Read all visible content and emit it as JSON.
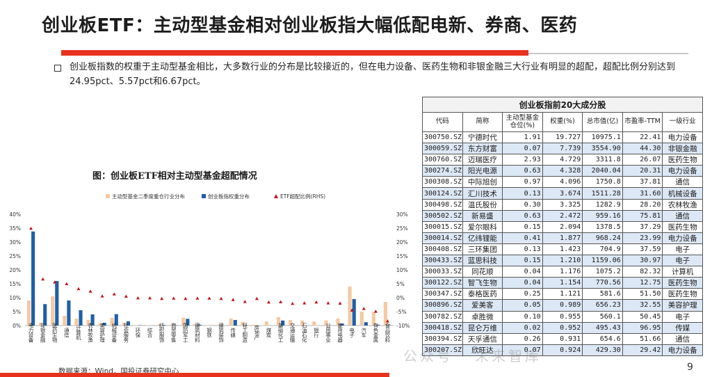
{
  "slide": {
    "title": "创业板ETF：主动型基金相对创业板指大幅低配电新、券商、医药",
    "bullet": "创业板指数的权重于主动型基金相比，大多数行业的分布是比较接近的，但在电力设备、医药生物和非银金融三大行业有明显的超配，超配比例分别达到24.95pct、5.57pct和6.67pct。",
    "source": "数据来源：Wind，国投证券研究中心",
    "watermark": "公众号 · 未来智库",
    "page_number": "9",
    "accent_color": "#e8321e"
  },
  "chart_data": {
    "type": "bar",
    "title": "图：创业板ETF相对主动型基金超配情况",
    "categories": [
      "电力设备",
      "非银金融",
      "医药生物",
      "通信",
      "计算机",
      "农林牧渔",
      "美容护理",
      "机械设备",
      "社会服务",
      "环保",
      "综合",
      "纺织服饰",
      "商贸零售",
      "国防军工",
      "建筑材料",
      "钢铁",
      "建筑装饰",
      "传媒",
      "轻工制造",
      "房地产",
      "煤炭",
      "基础化工",
      "交通运输",
      "石油石化",
      "银行",
      "公用事业",
      "家用电器",
      "电子",
      "汽车",
      "有色金属",
      "食品饮料"
    ],
    "series": [
      {
        "name": "主动型基金二季度重仓行业分布",
        "axis": "left",
        "color": "#f5c9a3",
        "values": [
          9.0,
          1.0,
          10.5,
          3.5,
          2.5,
          2.0,
          0.7,
          2.8,
          1.0,
          0.1,
          0.1,
          0.5,
          0.3,
          2.8,
          0.5,
          0.1,
          0.4,
          2.5,
          1.3,
          0.3,
          1.5,
          3.0,
          2.0,
          1.8,
          1.5,
          1.8,
          2.5,
          14.0,
          5.0,
          5.0,
          8.5
        ]
      },
      {
        "name": "创业板指权重分布",
        "axis": "left",
        "color": "#1f5fa8",
        "values": [
          33.8,
          7.7,
          16.0,
          9.0,
          5.5,
          4.0,
          1.0,
          4.1,
          1.5,
          0.1,
          0.0,
          0.2,
          0.1,
          2.4,
          0.3,
          0.0,
          0.0,
          2.0,
          0.0,
          0.0,
          0.0,
          1.8,
          0.0,
          0.0,
          0.0,
          0.0,
          0.7,
          9.5,
          1.2,
          0.3,
          0.1
        ]
      },
      {
        "name": "ETF超配比例(RHS)",
        "axis": "right",
        "type": "scatter",
        "color": "#c0171b",
        "values": [
          24.9,
          6.7,
          5.6,
          5.0,
          3.2,
          2.3,
          0.6,
          1.3,
          0.5,
          -0.1,
          -0.1,
          -0.3,
          -0.2,
          -0.3,
          -0.2,
          -0.2,
          -0.3,
          -0.7,
          -1.4,
          -0.3,
          -1.6,
          -1.5,
          -2.1,
          -1.9,
          -1.6,
          -1.9,
          -2.0,
          -4.5,
          -3.9,
          -4.9,
          -8.4
        ]
      }
    ],
    "ylim_left": [
      0,
      40
    ],
    "ylim_right": [
      -10,
      30
    ],
    "yticks_left": [
      "0%",
      "5%",
      "10%",
      "15%",
      "20%",
      "25%",
      "30%",
      "35%",
      "40%"
    ],
    "yticks_right": [
      "-10%",
      "-5%",
      "0%",
      "5%",
      "10%",
      "15%",
      "20%",
      "25%",
      "30%"
    ],
    "legend": "top"
  },
  "table": {
    "caption": "创业板指前20大成分股",
    "headers": [
      "代码",
      "简称",
      "主动型基金仓位(%)",
      "权重(%)",
      "总市值(亿)",
      "市盈率-TTM",
      "一级行业"
    ],
    "rows": [
      [
        "300750.SZ",
        "宁德时代",
        "1.91",
        "19.727",
        "10975.1",
        "22.41",
        "电力设备"
      ],
      [
        "300059.SZ",
        "东方财富",
        "0.07",
        "7.739",
        "3554.90",
        "44.30",
        "非银金融"
      ],
      [
        "300760.SZ",
        "迈瑞医疗",
        "2.93",
        "4.729",
        "3311.8",
        "26.07",
        "医药生物"
      ],
      [
        "300274.SZ",
        "阳光电源",
        "0.63",
        "4.328",
        "2040.04",
        "20.31",
        "电力设备"
      ],
      [
        "300308.SZ",
        "中际旭创",
        "0.97",
        "4.096",
        "1750.8",
        "37.81",
        "通信"
      ],
      [
        "300124.SZ",
        "汇川技术",
        "0.13",
        "3.674",
        "1511.28",
        "31.60",
        "机械设备"
      ],
      [
        "300498.SZ",
        "温氏股份",
        "0.30",
        "3.325",
        "1282.9",
        "28.20",
        "农林牧渔"
      ],
      [
        "300502.SZ",
        "新易盛",
        "0.63",
        "2.472",
        "959.16",
        "75.81",
        "通信"
      ],
      [
        "300015.SZ",
        "爱尔眼科",
        "0.15",
        "2.094",
        "1378.5",
        "37.29",
        "医药生物"
      ],
      [
        "300014.SZ",
        "亿纬锂能",
        "0.41",
        "1.877",
        "968.24",
        "23.99",
        "电力设备"
      ],
      [
        "300408.SZ",
        "三环集团",
        "0.13",
        "1.423",
        "704.9",
        "37.59",
        "电子"
      ],
      [
        "300433.SZ",
        "蓝思科技",
        "0.15",
        "1.210",
        "1159.06",
        "30.97",
        "电子"
      ],
      [
        "300033.SZ",
        "同花顺",
        "0.04",
        "1.176",
        "1075.2",
        "82.32",
        "计算机"
      ],
      [
        "300122.SZ",
        "智飞生物",
        "0.04",
        "1.154",
        "770.56",
        "12.75",
        "医药生物"
      ],
      [
        "300347.SZ",
        "泰格医药",
        "0.25",
        "1.121",
        "581.6",
        "51.50",
        "医药生物"
      ],
      [
        "300896.SZ",
        "爱美客",
        "0.05",
        "0.989",
        "656.23",
        "32.55",
        "美容护理"
      ],
      [
        "300782.SZ",
        "卓胜微",
        "0.10",
        "0.955",
        "560.1",
        "50.45",
        "电子"
      ],
      [
        "300418.SZ",
        "昆仑万维",
        "0.02",
        "0.952",
        "495.43",
        "96.95",
        "传媒"
      ],
      [
        "300394.SZ",
        "天孚通信",
        "0.26",
        "0.931",
        "654.6",
        "51.66",
        "通信"
      ],
      [
        "300207.SZ",
        "欣旺达",
        "0.07",
        "0.924",
        "429.30",
        "29.42",
        "电力设备"
      ]
    ]
  }
}
